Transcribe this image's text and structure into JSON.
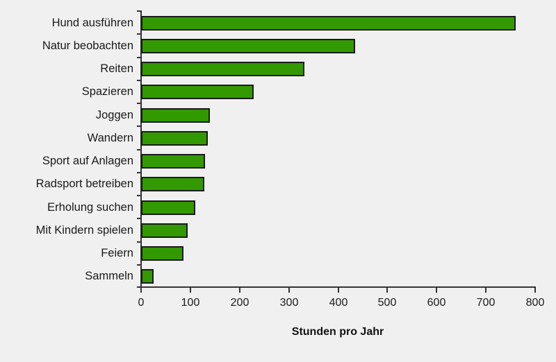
{
  "chart_data": {
    "type": "bar",
    "orientation": "horizontal",
    "title": "",
    "xlabel": "Stunden pro Jahr",
    "ylabel": "",
    "categories": [
      "Hund ausführen",
      "Natur beobachten",
      "Reiten",
      "Spazieren",
      "Joggen",
      "Wandern",
      "Sport auf Anlagen",
      "Radsport betreiben",
      "Erholung suchen",
      "Mit Kindern spielen",
      "Feiern",
      "Sammeln"
    ],
    "values": [
      760,
      434,
      331,
      228,
      140,
      135,
      130,
      128,
      110,
      95,
      86,
      25
    ],
    "xlim": [
      0,
      800
    ],
    "xticks": [
      0,
      100,
      200,
      300,
      400,
      500,
      600,
      700,
      800
    ],
    "grid": false,
    "legend": null,
    "bar_color": "#339900",
    "bar_edge_color": "#1a1a1a",
    "background": "#f0f0f0"
  }
}
